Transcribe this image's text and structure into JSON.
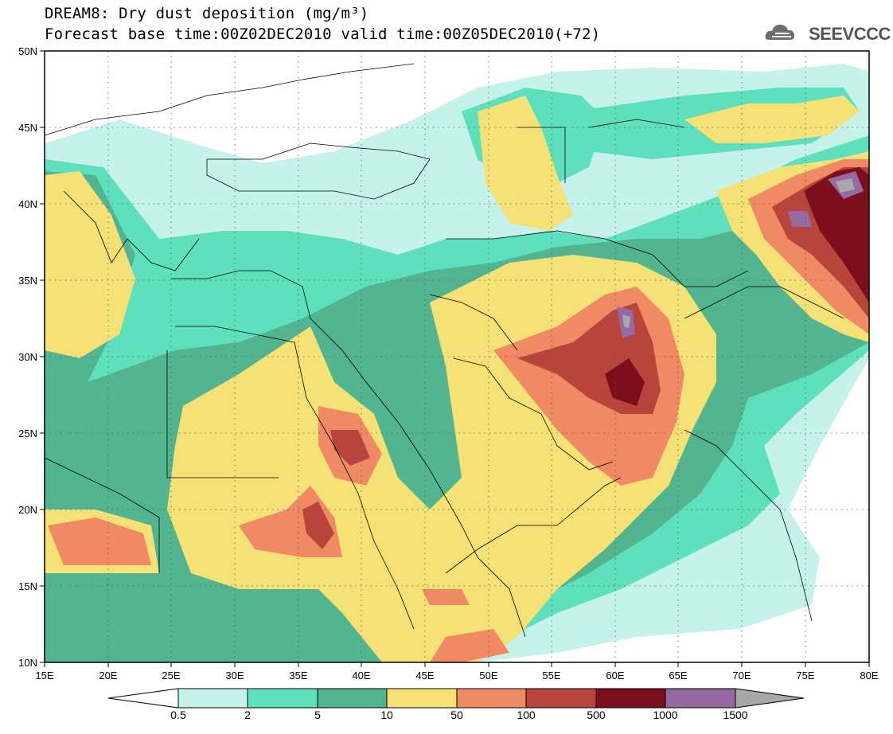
{
  "header": {
    "title_line1": "DREAM8: Dry dust deposition (mg/m³)",
    "title_line2": "Forecast base time:00Z02DEC2010 valid time:00Z05DEC2010(+72)",
    "logo_text": "SEEVCCC"
  },
  "map": {
    "x_labels": [
      "15E",
      "20E",
      "25E",
      "30E",
      "35E",
      "40E",
      "45E",
      "50E",
      "55E",
      "60E",
      "65E",
      "70E",
      "75E",
      "80E"
    ],
    "y_labels": [
      "50N",
      "45N",
      "40N",
      "35N",
      "30N",
      "25N",
      "20N",
      "15N",
      "10N"
    ]
  },
  "colorbar": {
    "labels": [
      "0.5",
      "2",
      "5",
      "10",
      "50",
      "100",
      "500",
      "1000",
      "1500"
    ],
    "colors": [
      "#c6f2ec",
      "#5ee0bf",
      "#52b58f",
      "#f5e175",
      "#ef8a64",
      "#b9443b",
      "#7d0e1b",
      "#946aa1",
      "#a8a8a8"
    ],
    "low_end_color": "#ffffff"
  },
  "colors": {
    "land_bg": "#ffffff",
    "border_lines": "#000000",
    "frame": "#000000"
  }
}
